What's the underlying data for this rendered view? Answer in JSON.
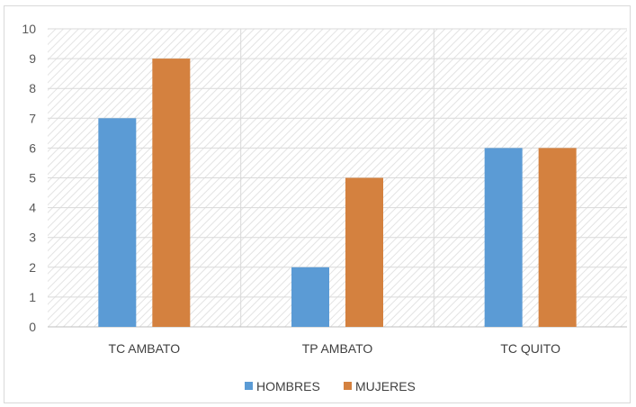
{
  "chart_data": {
    "type": "bar",
    "categories": [
      "TC AMBATO",
      "TP AMBATO",
      "TC QUITO"
    ],
    "series": [
      {
        "name": "HOMBRES",
        "values": [
          7,
          2,
          6
        ],
        "color": "#5b9bd5"
      },
      {
        "name": "MUJERES",
        "values": [
          9,
          5,
          6
        ],
        "color": "#d4813f"
      }
    ],
    "ylim": [
      0,
      10
    ],
    "yticks": [
      "0",
      "1",
      "2",
      "3",
      "4",
      "5",
      "6",
      "7",
      "8",
      "9",
      "10"
    ],
    "grid": true,
    "legend_position": "bottom",
    "plot_pattern": "diagonal-hatch",
    "colors": {
      "grid": "#d9d9d9",
      "hatch": "#e3e3e3",
      "axis": "#bfbfbf"
    }
  }
}
